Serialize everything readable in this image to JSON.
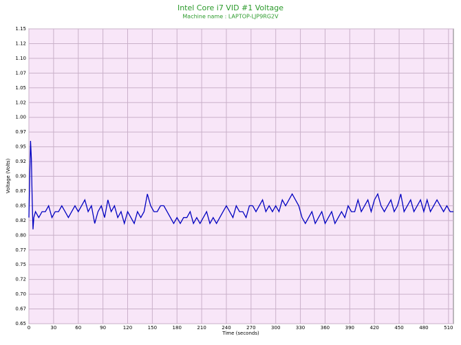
{
  "chart_data": {
    "type": "line",
    "title": "Intel Core i7 VID #1 Voltage",
    "subtitle": "Machine name : LAPTOP-LJP9RG2V",
    "xlabel": "Time (seconds)",
    "ylabel": "Voltage (Volts)",
    "xlim": [
      0,
      516
    ],
    "ylim": [
      0.65,
      1.15
    ],
    "xticks": [
      0,
      30,
      60,
      90,
      120,
      150,
      180,
      210,
      240,
      270,
      300,
      330,
      360,
      390,
      420,
      450,
      480,
      510
    ],
    "yticks": [
      {
        "value": 0.65,
        "label": "0.65"
      },
      {
        "value": 0.675,
        "label": "0.67"
      },
      {
        "value": 0.7,
        "label": "0.70"
      },
      {
        "value": 0.725,
        "label": "0.72"
      },
      {
        "value": 0.75,
        "label": "0.75"
      },
      {
        "value": 0.775,
        "label": "0.77"
      },
      {
        "value": 0.8,
        "label": "0.80"
      },
      {
        "value": 0.825,
        "label": "0.82"
      },
      {
        "value": 0.85,
        "label": "0.85"
      },
      {
        "value": 0.875,
        "label": "0.87"
      },
      {
        "value": 0.9,
        "label": "0.90"
      },
      {
        "value": 0.925,
        "label": "0.92"
      },
      {
        "value": 0.95,
        "label": "0.95"
      },
      {
        "value": 0.975,
        "label": "0.97"
      },
      {
        "value": 1.0,
        "label": "1.00"
      },
      {
        "value": 1.025,
        "label": "1.02"
      },
      {
        "value": 1.05,
        "label": "1.05"
      },
      {
        "value": 1.075,
        "label": "1.07"
      },
      {
        "value": 1.1,
        "label": "1.10"
      },
      {
        "value": 1.125,
        "label": "1.12"
      },
      {
        "value": 1.15,
        "label": "1.15"
      }
    ],
    "grid": true,
    "x": [
      0,
      1,
      2,
      3,
      4,
      5,
      6,
      8,
      12,
      16,
      20,
      24,
      28,
      32,
      36,
      40,
      44,
      48,
      52,
      56,
      60,
      64,
      68,
      72,
      76,
      80,
      84,
      88,
      92,
      96,
      100,
      104,
      108,
      112,
      116,
      120,
      124,
      128,
      132,
      136,
      140,
      144,
      148,
      152,
      156,
      160,
      164,
      168,
      172,
      176,
      180,
      184,
      188,
      192,
      196,
      200,
      204,
      208,
      212,
      216,
      220,
      224,
      228,
      232,
      236,
      240,
      244,
      248,
      252,
      256,
      260,
      264,
      268,
      272,
      276,
      280,
      284,
      288,
      292,
      296,
      300,
      304,
      308,
      312,
      316,
      320,
      324,
      328,
      332,
      336,
      340,
      344,
      348,
      352,
      356,
      360,
      364,
      368,
      372,
      376,
      380,
      384,
      388,
      392,
      396,
      400,
      404,
      408,
      412,
      416,
      420,
      424,
      428,
      432,
      436,
      440,
      444,
      448,
      452,
      456,
      460,
      464,
      468,
      472,
      476,
      480,
      484,
      488,
      492,
      496,
      500,
      504,
      508,
      512,
      516
    ],
    "series": [
      {
        "name": "Intel Core i7 VID #1",
        "color": "#0000c0",
        "values": [
          0.83,
          0.9,
          0.96,
          0.93,
          0.86,
          0.81,
          0.83,
          0.84,
          0.83,
          0.84,
          0.84,
          0.85,
          0.83,
          0.84,
          0.84,
          0.85,
          0.84,
          0.83,
          0.84,
          0.85,
          0.84,
          0.85,
          0.86,
          0.84,
          0.85,
          0.82,
          0.84,
          0.85,
          0.83,
          0.86,
          0.84,
          0.85,
          0.83,
          0.84,
          0.82,
          0.84,
          0.83,
          0.82,
          0.84,
          0.83,
          0.84,
          0.87,
          0.85,
          0.84,
          0.84,
          0.85,
          0.85,
          0.84,
          0.83,
          0.82,
          0.83,
          0.82,
          0.83,
          0.83,
          0.84,
          0.82,
          0.83,
          0.82,
          0.83,
          0.84,
          0.82,
          0.83,
          0.82,
          0.83,
          0.84,
          0.85,
          0.84,
          0.83,
          0.85,
          0.84,
          0.84,
          0.83,
          0.85,
          0.85,
          0.84,
          0.85,
          0.86,
          0.84,
          0.85,
          0.84,
          0.85,
          0.84,
          0.86,
          0.85,
          0.86,
          0.87,
          0.86,
          0.85,
          0.83,
          0.82,
          0.83,
          0.84,
          0.82,
          0.83,
          0.84,
          0.82,
          0.83,
          0.84,
          0.82,
          0.83,
          0.84,
          0.83,
          0.85,
          0.84,
          0.84,
          0.86,
          0.84,
          0.85,
          0.86,
          0.84,
          0.86,
          0.87,
          0.85,
          0.84,
          0.85,
          0.86,
          0.84,
          0.85,
          0.87,
          0.84,
          0.85,
          0.86,
          0.84,
          0.85,
          0.86,
          0.84,
          0.86,
          0.84,
          0.85,
          0.86,
          0.85,
          0.84,
          0.85,
          0.84,
          0.84
        ]
      }
    ]
  }
}
